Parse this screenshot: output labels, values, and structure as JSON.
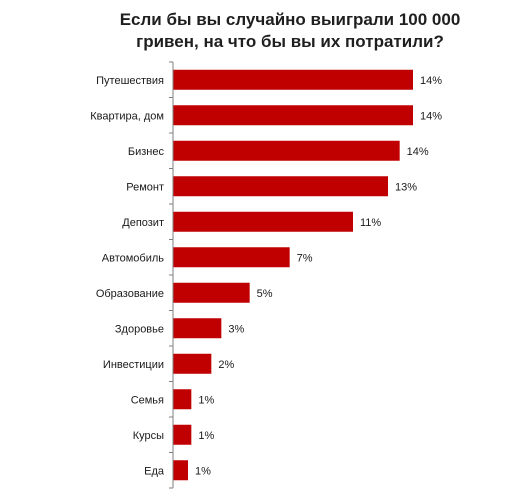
{
  "chart_data": {
    "type": "bar",
    "orientation": "horizontal",
    "title_line1": "Если бы вы случайно выиграли 100 000",
    "title_line2": "гривен, на что бы вы их потратили?",
    "categories": [
      "Путешествия",
      "Квартира, дом",
      "Бизнес",
      "Ремонт",
      "Депозит",
      "Автомобиль",
      "Образование",
      "Здоровье",
      "Инвестиции",
      "Семья",
      "Курсы",
      "Еда"
    ],
    "values": [
      14,
      14,
      14,
      13,
      11,
      7,
      5,
      3,
      2,
      1,
      1,
      1
    ],
    "bar_lengths": [
      14.4,
      14.4,
      13.6,
      12.9,
      10.8,
      7.0,
      4.6,
      2.9,
      2.3,
      1.1,
      1.1,
      0.9
    ],
    "value_labels": [
      "14%",
      "14%",
      "14%",
      "13%",
      "11%",
      "7%",
      "5%",
      "3%",
      "2%",
      "1%",
      "1%",
      "1%"
    ],
    "xlim": [
      0,
      14.4
    ],
    "grid": false,
    "legend": "none",
    "bar_color": "#c00000",
    "axis_color": "#7f7f7f"
  }
}
